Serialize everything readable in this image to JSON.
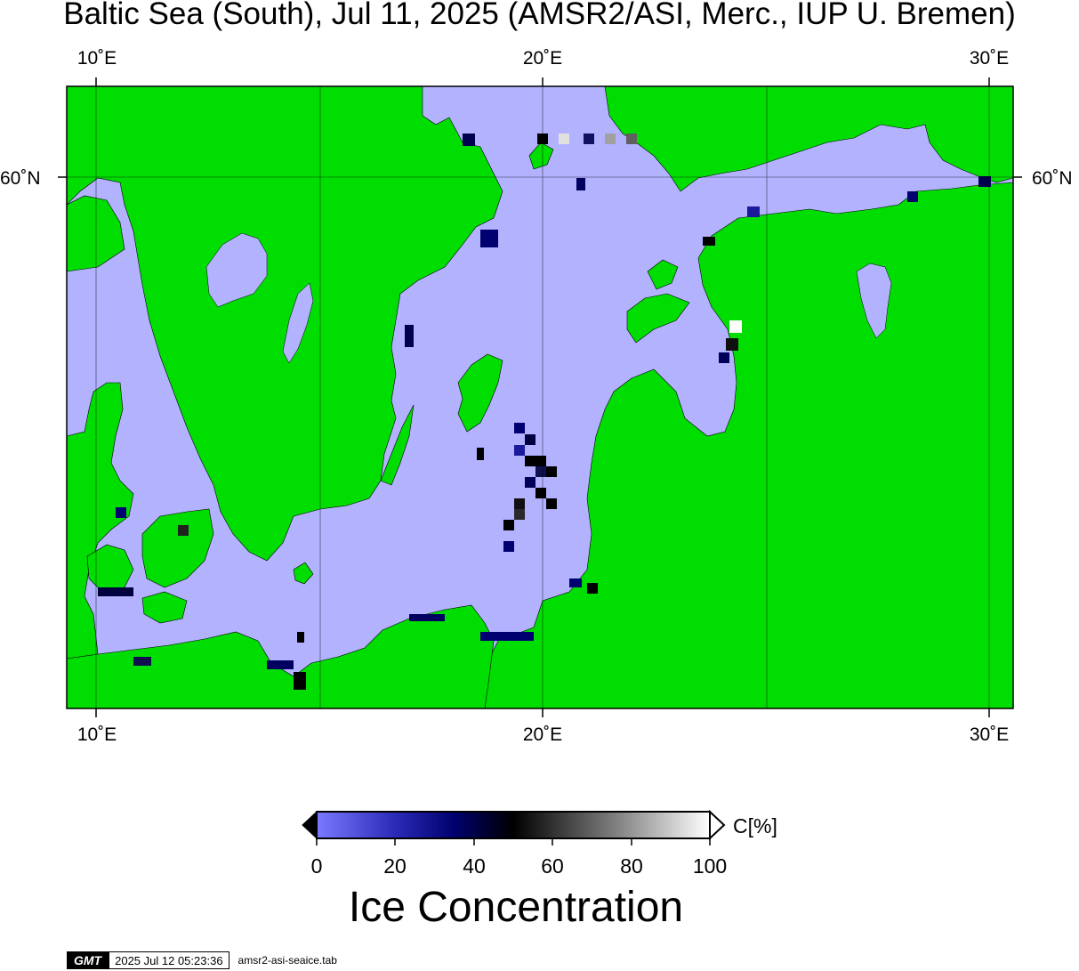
{
  "title": "Baltic Sea (South), Jul 11, 2025 (AMSR2/ASI, Merc., IUP U. Bremen)",
  "map": {
    "lon_labels": [
      "10˚E",
      "20˚E",
      "30˚E"
    ],
    "lat_label": "60˚N",
    "colors": {
      "land": "#00dd00",
      "water": "#b2b2ff",
      "frame": "#000000",
      "no_data": "#888888"
    }
  },
  "colorbar": {
    "ticks": [
      "0",
      "20",
      "40",
      "60",
      "80",
      "100"
    ],
    "unit": "C[%]",
    "label": "Ice Concentration"
  },
  "footer": {
    "logo": "GMT",
    "timestamp": "2025 Jul 12 05:23:36",
    "source": "amsr2-asi-seaice.tab"
  }
}
